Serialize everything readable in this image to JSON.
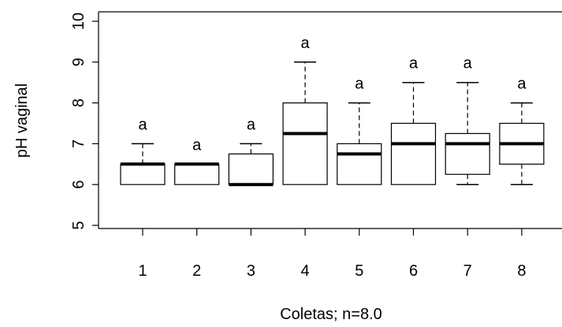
{
  "chart_data": {
    "type": "boxplot",
    "xlabel": "Coletas; n=8.0",
    "ylabel": "pH vaginal",
    "ylim": [
      5,
      10
    ],
    "yticks": [
      5,
      6,
      7,
      8,
      9,
      10
    ],
    "categories": [
      "1",
      "2",
      "3",
      "4",
      "5",
      "6",
      "7",
      "8"
    ],
    "boxes": [
      {
        "category": "1",
        "whisker_low": 6,
        "q1": 6,
        "median": 6.5,
        "q3": 6.5,
        "whisker_high": 7,
        "annotation": "a"
      },
      {
        "category": "2",
        "whisker_low": 6,
        "q1": 6,
        "median": 6.5,
        "q3": 6.5,
        "whisker_high": 6.5,
        "annotation": "a"
      },
      {
        "category": "3",
        "whisker_low": 6,
        "q1": 6,
        "median": 6,
        "q3": 6.75,
        "whisker_high": 7,
        "annotation": "a"
      },
      {
        "category": "4",
        "whisker_low": 6,
        "q1": 6,
        "median": 7.25,
        "q3": 8,
        "whisker_high": 9,
        "annotation": "a"
      },
      {
        "category": "5",
        "whisker_low": 6,
        "q1": 6,
        "median": 6.75,
        "q3": 7,
        "whisker_high": 8,
        "annotation": "a"
      },
      {
        "category": "6",
        "whisker_low": 6,
        "q1": 6,
        "median": 7,
        "q3": 7.5,
        "whisker_high": 8.5,
        "annotation": "a"
      },
      {
        "category": "7",
        "whisker_low": 6,
        "q1": 6.25,
        "median": 7,
        "q3": 7.25,
        "whisker_high": 8.5,
        "annotation": "a"
      },
      {
        "category": "8",
        "whisker_low": 6,
        "q1": 6.5,
        "median": 7,
        "q3": 7.5,
        "whisker_high": 8,
        "annotation": "a"
      }
    ],
    "grid": false,
    "colors": {
      "box_fill": "#ffffff",
      "stroke": "#000000"
    }
  }
}
